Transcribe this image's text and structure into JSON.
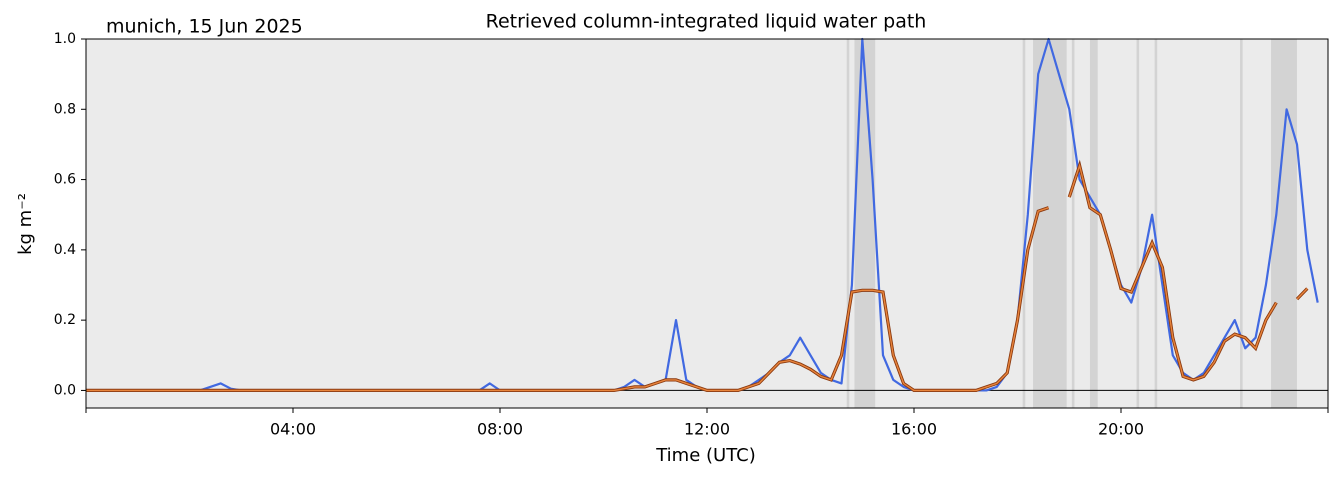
{
  "chart_data": {
    "type": "line",
    "title": "Retrieved column-integrated liquid water path",
    "subtitle": "munich, 15 Jun 2025",
    "x_label": "Time (UTC)",
    "y_label": "kg m⁻²",
    "xlim": [
      0,
      24
    ],
    "xticks": [
      {
        "value": 4,
        "label": "04:00"
      },
      {
        "value": 8,
        "label": "08:00"
      },
      {
        "value": 12,
        "label": "12:00"
      },
      {
        "value": 16,
        "label": "16:00"
      },
      {
        "value": 20,
        "label": "20:00"
      }
    ],
    "ylim": [
      -0.05,
      1.0
    ],
    "yticks": [
      {
        "value": 0,
        "label": "0.0"
      },
      {
        "value": 0.2,
        "label": "0.2"
      },
      {
        "value": 0.4,
        "label": "0.4"
      },
      {
        "value": 0.6,
        "label": "0.6"
      },
      {
        "value": 0.8,
        "label": "0.8"
      },
      {
        "value": 1.0,
        "label": "1.0"
      }
    ],
    "grid": false,
    "background": "#ebebeb",
    "shade_color": "#d3d3d3",
    "shaded_intervals": [
      [
        14.7,
        14.75
      ],
      [
        14.85,
        15.25
      ],
      [
        18.1,
        18.15
      ],
      [
        18.3,
        18.95
      ],
      [
        19.05,
        19.1
      ],
      [
        19.4,
        19.55
      ],
      [
        20.3,
        20.35
      ],
      [
        20.65,
        20.7
      ],
      [
        22.3,
        22.35
      ],
      [
        22.9,
        23.4
      ]
    ],
    "x": [
      0,
      0.2,
      0.4,
      0.6,
      0.8,
      1,
      1.2,
      1.4,
      1.6,
      1.8,
      2,
      2.2,
      2.4,
      2.6,
      2.8,
      3,
      3.2,
      3.4,
      3.6,
      3.8,
      4,
      4.2,
      4.4,
      4.6,
      4.8,
      5,
      5.2,
      5.4,
      5.6,
      5.8,
      6,
      6.2,
      6.4,
      6.6,
      6.8,
      7,
      7.2,
      7.4,
      7.6,
      7.8,
      8,
      8.2,
      8.4,
      8.6,
      8.8,
      9,
      9.2,
      9.4,
      9.6,
      9.8,
      10,
      10.2,
      10.4,
      10.6,
      10.8,
      11,
      11.2,
      11.4,
      11.6,
      11.8,
      12,
      12.2,
      12.4,
      12.6,
      12.8,
      13,
      13.2,
      13.4,
      13.6,
      13.8,
      14,
      14.2,
      14.4,
      14.6,
      14.8,
      15,
      15.2,
      15.4,
      15.6,
      15.8,
      16,
      16.2,
      16.4,
      16.6,
      16.8,
      17,
      17.2,
      17.4,
      17.6,
      17.8,
      18,
      18.2,
      18.4,
      18.6,
      18.8,
      19,
      19.2,
      19.4,
      19.6,
      19.8,
      20,
      20.2,
      20.4,
      20.6,
      20.8,
      21,
      21.2,
      21.4,
      21.6,
      21.8,
      22,
      22.2,
      22.4,
      22.6,
      22.8,
      23,
      23.2,
      23.4,
      23.6,
      23.8
    ],
    "series": [
      {
        "color": "#4169e1",
        "style": "points",
        "values": [
          0,
          0,
          0,
          0,
          0,
          0,
          0,
          0,
          0,
          0,
          0,
          0,
          0.01,
          0.02,
          0.005,
          0,
          0,
          0,
          0,
          0,
          0,
          0,
          0,
          0,
          0,
          0,
          0,
          0,
          0,
          0,
          0,
          0,
          0,
          0,
          0,
          0,
          0,
          0,
          0,
          0.02,
          0,
          0,
          0,
          0,
          0,
          0,
          0,
          0,
          0,
          0,
          0,
          0,
          0.01,
          0.03,
          0.01,
          0.02,
          0.03,
          0.2,
          0.03,
          0.01,
          0,
          0,
          0,
          0,
          0.01,
          0.03,
          0.05,
          0.08,
          0.1,
          0.15,
          0.1,
          0.05,
          0.03,
          0.02,
          0.3,
          1.0,
          0.6,
          0.1,
          0.03,
          0.01,
          0,
          0,
          0,
          0,
          0,
          0,
          0,
          0,
          0.01,
          0.05,
          0.2,
          0.5,
          0.9,
          1.0,
          0.9,
          0.8,
          0.6,
          0.55,
          0.5,
          0.4,
          0.3,
          0.25,
          0.35,
          0.5,
          0.3,
          0.1,
          0.05,
          0.03,
          0.05,
          0.1,
          0.15,
          0.2,
          0.12,
          0.15,
          0.3,
          0.5,
          0.8,
          0.7,
          0.4,
          0.25
        ]
      },
      {
        "color": "#e8843c",
        "edge_color": "#8b3a10",
        "style": "line",
        "values": [
          0,
          0,
          0,
          0,
          0,
          0,
          0,
          0,
          0,
          0,
          0,
          0,
          0,
          0,
          0,
          0,
          0,
          0,
          0,
          0,
          0,
          0,
          0,
          0,
          0,
          0,
          0,
          0,
          0,
          0,
          0,
          0,
          0,
          0,
          0,
          0,
          0,
          0,
          0,
          0,
          0,
          0,
          0,
          0,
          0,
          0,
          0,
          0,
          0,
          0,
          0,
          0,
          0.005,
          0.01,
          0.01,
          0.02,
          0.03,
          0.03,
          0.02,
          0.01,
          0,
          0,
          0,
          0,
          0.01,
          0.02,
          0.05,
          0.08,
          0.085,
          0.075,
          0.06,
          0.04,
          0.03,
          0.1,
          0.28,
          0.285,
          0.285,
          0.28,
          0.1,
          0.02,
          0,
          0,
          0,
          0,
          0,
          0,
          0,
          0.01,
          0.02,
          0.05,
          0.2,
          0.4,
          0.51,
          0.52,
          null,
          0.55,
          0.64,
          0.52,
          0.5,
          0.4,
          0.29,
          0.28,
          0.35,
          0.42,
          0.35,
          0.15,
          0.04,
          0.03,
          0.04,
          0.08,
          0.14,
          0.16,
          0.15,
          0.12,
          0.2,
          0.25,
          null,
          0.26,
          0.29,
          null
        ]
      }
    ]
  }
}
